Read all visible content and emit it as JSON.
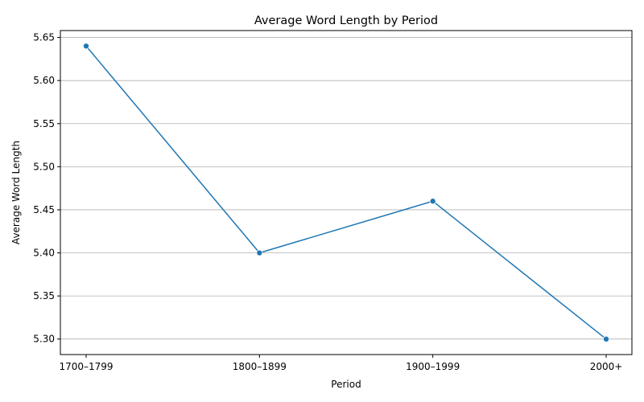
{
  "chart_data": {
    "type": "line",
    "title": "Average Word Length by Period",
    "xlabel": "Period",
    "ylabel": "Average Word Length",
    "categories": [
      "1700–1799",
      "1800–1899",
      "1900–1999",
      "2000+"
    ],
    "series": [
      {
        "values": [
          5.64,
          5.4,
          5.46,
          5.3
        ],
        "color": "#1f77b4",
        "marker": "circle"
      }
    ],
    "ylim": [
      5.282,
      5.658
    ],
    "yticks": [
      5.3,
      5.35,
      5.4,
      5.45,
      5.5,
      5.55,
      5.6,
      5.65
    ],
    "ytick_labels": [
      "5.30",
      "5.35",
      "5.40",
      "5.45",
      "5.50",
      "5.55",
      "5.60",
      "5.65"
    ],
    "grid": {
      "y": true,
      "x": false,
      "color": "#b0b0b0"
    }
  }
}
